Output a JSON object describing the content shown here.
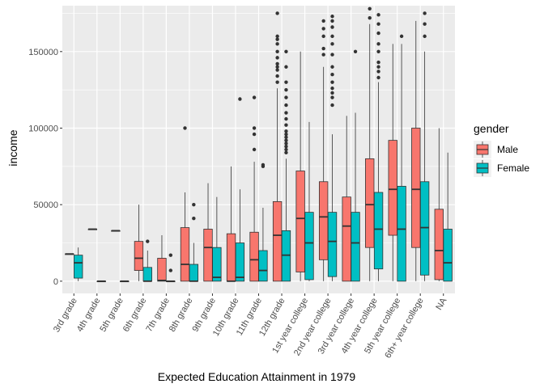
{
  "chart_data": {
    "type": "boxplot",
    "xlabel": "Expected Education Attainment in 1979",
    "ylabel": "income",
    "ylim": [
      -8000,
      180000
    ],
    "yticks": [
      0,
      50000,
      100000,
      150000
    ],
    "ytick_labels": [
      "0",
      "50000",
      "100000",
      "150000"
    ],
    "grid": true,
    "legend": {
      "title": "gender",
      "position": "right",
      "entries": [
        {
          "name": "Male",
          "color": "#F8766D"
        },
        {
          "name": "Female",
          "color": "#00BFC4"
        }
      ]
    },
    "categories": [
      "3rd grade",
      "4th grade",
      "5th grade",
      "6th grade",
      "7th grade",
      "8th grade",
      "9th grade",
      "10th grade",
      "11th grade",
      "12th grade",
      "1st year college",
      "2nd year college",
      "3rd year college",
      "4th year college",
      "5th year college",
      "6th+ year college",
      "NA"
    ],
    "series": [
      {
        "name": "Male",
        "color": "#F8766D",
        "boxes": [
          {
            "category": "3rd grade",
            "min": 17800,
            "q1": 17800,
            "median": 17800,
            "q3": 17800,
            "max": 17800,
            "outliers": []
          },
          {
            "category": "4th grade",
            "min": 34000,
            "q1": 34000,
            "median": 34000,
            "q3": 34000,
            "max": 34000,
            "outliers": []
          },
          {
            "category": "5th grade",
            "min": 33000,
            "q1": 33000,
            "median": 33000,
            "q3": 33000,
            "max": 33000,
            "outliers": []
          },
          {
            "category": "6th grade",
            "min": 0,
            "q1": 7000,
            "median": 15000,
            "q3": 26000,
            "max": 50000,
            "outliers": []
          },
          {
            "category": "7th grade",
            "min": 0,
            "q1": 0,
            "median": 500,
            "q3": 15000,
            "max": 30000,
            "outliers": []
          },
          {
            "category": "8th grade",
            "min": 0,
            "q1": 0,
            "median": 11000,
            "q3": 35000,
            "max": 58000,
            "outliers": [
              100000
            ]
          },
          {
            "category": "9th grade",
            "min": 0,
            "q1": 0,
            "median": 22000,
            "q3": 34000,
            "max": 64000,
            "outliers": []
          },
          {
            "category": "10th grade",
            "min": 0,
            "q1": 0,
            "median": 0,
            "q3": 31000,
            "max": 75000,
            "outliers": []
          },
          {
            "category": "11th grade",
            "min": 0,
            "q1": 0,
            "median": 14000,
            "q3": 32000,
            "max": 78000,
            "outliers": [
              86000,
              96000,
              100000,
              120000
            ]
          },
          {
            "category": "12th grade",
            "min": 0,
            "q1": 0,
            "median": 30000,
            "q3": 52000,
            "max": 126000,
            "outliers": [
              130000,
              134000,
              138000,
              140000,
              142000,
              146000,
              150000,
              155000,
              158000,
              160000,
              175000
            ]
          },
          {
            "category": "1st year college",
            "min": 0,
            "q1": 6000,
            "median": 41000,
            "q3": 72000,
            "max": 150000,
            "outliers": []
          },
          {
            "category": "2nd year college",
            "min": 0,
            "q1": 14000,
            "median": 42000,
            "q3": 65000,
            "max": 140000,
            "outliers": [
              148000,
              152000,
              160000,
              165000,
              170000
            ]
          },
          {
            "category": "3rd year college",
            "min": 0,
            "q1": 0,
            "median": 36000,
            "q3": 55000,
            "max": 108000,
            "outliers": []
          },
          {
            "category": "4th year college",
            "min": 0,
            "q1": 22000,
            "median": 50000,
            "q3": 80000,
            "max": 168000,
            "outliers": [
              172000,
              178000
            ]
          },
          {
            "category": "5th year college",
            "min": 0,
            "q1": 30000,
            "median": 60000,
            "q3": 92000,
            "max": 155000,
            "outliers": []
          },
          {
            "category": "6th+ year college",
            "min": 0,
            "q1": 22000,
            "median": 60000,
            "q3": 100000,
            "max": 170000,
            "outliers": []
          },
          {
            "category": "NA",
            "min": 0,
            "q1": 1000,
            "median": 20000,
            "q3": 47000,
            "max": 100000,
            "outliers": []
          }
        ]
      },
      {
        "name": "Female",
        "color": "#00BFC4",
        "boxes": [
          {
            "category": "3rd grade",
            "min": 0,
            "q1": 2000,
            "median": 12000,
            "q3": 17000,
            "max": 22000,
            "outliers": []
          },
          {
            "category": "4th grade",
            "min": 0,
            "q1": 0,
            "median": 0,
            "q3": 0,
            "max": 0,
            "outliers": []
          },
          {
            "category": "5th grade",
            "min": 0,
            "q1": 0,
            "median": 0,
            "q3": 0,
            "max": 0,
            "outliers": []
          },
          {
            "category": "6th grade",
            "min": 0,
            "q1": 0,
            "median": 0,
            "q3": 9000,
            "max": 20000,
            "outliers": [
              26000
            ]
          },
          {
            "category": "7th grade",
            "min": 0,
            "q1": 0,
            "median": 0,
            "q3": 0,
            "max": 0,
            "outliers": [
              7000,
              17000
            ]
          },
          {
            "category": "8th grade",
            "min": 0,
            "q1": 0,
            "median": 0,
            "q3": 11000,
            "max": 25000,
            "outliers": [
              41000,
              50000
            ]
          },
          {
            "category": "9th grade",
            "min": 0,
            "q1": 0,
            "median": 2500,
            "q3": 22000,
            "max": 55000,
            "outliers": []
          },
          {
            "category": "10th grade",
            "min": 0,
            "q1": 0,
            "median": 2500,
            "q3": 25000,
            "max": 60000,
            "outliers": [
              119000
            ]
          },
          {
            "category": "11th grade",
            "min": 0,
            "q1": 0,
            "median": 7000,
            "q3": 20000,
            "max": 48000,
            "outliers": [
              75000,
              76000
            ]
          },
          {
            "category": "12th grade",
            "min": 0,
            "q1": 0,
            "median": 17000,
            "q3": 33000,
            "max": 80000,
            "outliers": [
              84000,
              86000,
              88000,
              90000,
              92000,
              94000,
              96000,
              98000,
              102000,
              106000,
              110000,
              115000,
              120000,
              125000,
              130000,
              140000,
              150000
            ]
          },
          {
            "category": "1st year college",
            "min": 0,
            "q1": 1000,
            "median": 25000,
            "q3": 45000,
            "max": 104000,
            "outliers": []
          },
          {
            "category": "2nd year college",
            "min": 0,
            "q1": 3000,
            "median": 26000,
            "q3": 45000,
            "max": 96000,
            "outliers": [
              115000,
              120000,
              123000,
              126000,
              130000,
              135000,
              140000,
              148000,
              155000,
              160000,
              166000,
              170000,
              173000
            ]
          },
          {
            "category": "3rd year college",
            "min": 0,
            "q1": 0,
            "median": 25000,
            "q3": 45000,
            "max": 110000,
            "outliers": [
              150000
            ]
          },
          {
            "category": "4th year college",
            "min": 0,
            "q1": 8000,
            "median": 34000,
            "q3": 58000,
            "max": 130000,
            "outliers": [
              133000,
              137000,
              140000,
              143000,
              150000,
              155000,
              162000,
              168000,
              174000
            ]
          },
          {
            "category": "5th year college",
            "min": 0,
            "q1": 0,
            "median": 34000,
            "q3": 62000,
            "max": 155000,
            "outliers": [
              160000
            ]
          },
          {
            "category": "6th+ year college",
            "min": 0,
            "q1": 4000,
            "median": 35000,
            "q3": 65000,
            "max": 150000,
            "outliers": [
              160000,
              168000,
              175000
            ]
          },
          {
            "category": "NA",
            "min": 0,
            "q1": 0,
            "median": 12000,
            "q3": 34000,
            "max": 84000,
            "outliers": []
          }
        ]
      }
    ]
  }
}
